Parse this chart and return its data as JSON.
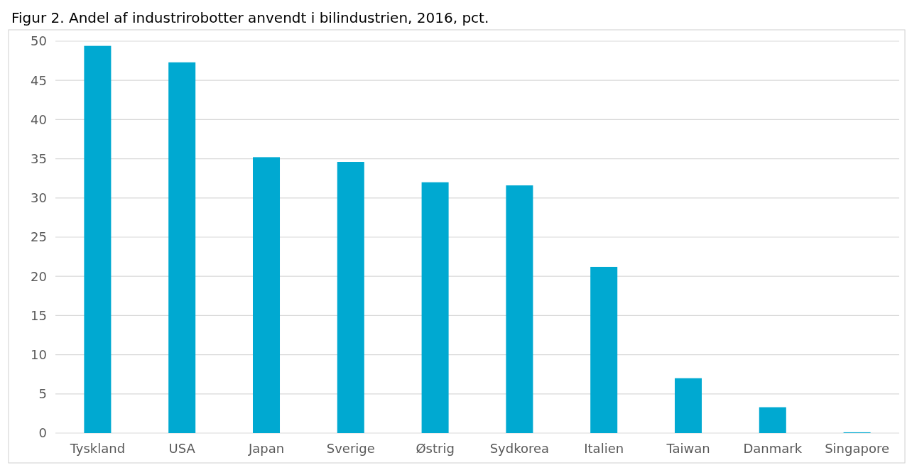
{
  "chart_data": {
    "type": "bar",
    "title": "Figur 2. Andel af industrirobotter anvendt i bilindustrien, 2016, pct.",
    "categories": [
      "Tyskland",
      "USA",
      "Japan",
      "Sverige",
      "Østrig",
      "Sydkorea",
      "Italien",
      "Taiwan",
      "Danmark",
      "Singapore"
    ],
    "values": [
      49.4,
      47.3,
      35.2,
      34.6,
      32.0,
      31.6,
      21.2,
      7.0,
      3.3,
      0.1
    ],
    "color": "#00a9d1",
    "ylim": [
      0,
      50
    ],
    "yticks": [
      0,
      5,
      10,
      15,
      20,
      25,
      30,
      35,
      40,
      45,
      50
    ],
    "grid": "y"
  }
}
